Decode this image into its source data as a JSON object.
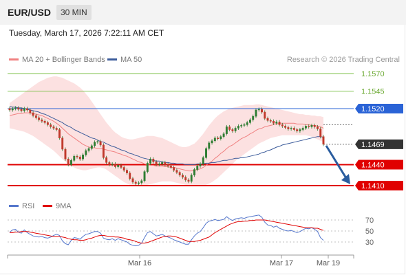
{
  "header": {
    "pair": "EUR/USD",
    "timeframe": "30 MIN"
  },
  "timestamp": "Tuesday, March 17, 2026 7:22:11 AM CET",
  "legend": {
    "ma20": "MA 20 + Bollinger Bands",
    "ma50": "MA 50",
    "rsi": "RSI",
    "ma9": "9MA"
  },
  "copyright": "Research © 2026 Trading Central",
  "colors": {
    "ma20": "#f08080",
    "ma50": "#3a5a9a",
    "bollinger_fill": "#fcdcdc",
    "support": "#e00000",
    "resistance_current": "#2a63d6",
    "target": "#7cc24a",
    "candle": "#2e7d32",
    "rsi": "#5577cc",
    "rsi_ma": "#e00000",
    "arrow": "#2a5d9f",
    "price_label": "#333333"
  },
  "chart_data": [
    {
      "type": "candlestick",
      "title": "EUR/USD",
      "ylim": [
        1.1395,
        1.16
      ],
      "grid": false,
      "legend_placement": "top-left",
      "x_tick_labels": [
        "Mar 16",
        "Mar 17",
        "Mar 19"
      ],
      "levels": [
        {
          "value": 1.157,
          "label": "1.1570",
          "role": "target"
        },
        {
          "value": 1.1545,
          "label": "1.1545",
          "role": "target"
        },
        {
          "value": 1.152,
          "label": "1.1520",
          "role": "resistance"
        },
        {
          "value": 1.1469,
          "label": "1.1469",
          "role": "last"
        },
        {
          "value": 1.144,
          "label": "1.1440",
          "role": "support"
        },
        {
          "value": 1.141,
          "label": "1.1410",
          "role": "support"
        }
      ],
      "close": [
        1.1518,
        1.152,
        1.1521,
        1.1519,
        1.1517,
        1.152,
        1.1518,
        1.1514,
        1.151,
        1.1507,
        1.1504,
        1.1502,
        1.15,
        1.1497,
        1.1494,
        1.1492,
        1.149,
        1.1478,
        1.1462,
        1.1448,
        1.144,
        1.1446,
        1.1452,
        1.1451,
        1.1448,
        1.1454,
        1.146,
        1.1463,
        1.1467,
        1.1472,
        1.1473,
        1.1468,
        1.145,
        1.1443,
        1.144,
        1.1441,
        1.1437,
        1.1439,
        1.1436,
        1.1432,
        1.1428,
        1.142,
        1.1415,
        1.1413,
        1.1414,
        1.1417,
        1.143,
        1.1442,
        1.1448,
        1.1444,
        1.144,
        1.1441,
        1.1443,
        1.144,
        1.1438,
        1.1436,
        1.1432,
        1.1429,
        1.1425,
        1.1422,
        1.1418,
        1.1416,
        1.1425,
        1.1433,
        1.1438,
        1.1441,
        1.145,
        1.1463,
        1.1471,
        1.1474,
        1.1478,
        1.1477,
        1.148,
        1.1484,
        1.1494,
        1.149,
        1.1488,
        1.1492,
        1.1495,
        1.1496,
        1.1497,
        1.15,
        1.1504,
        1.1509,
        1.1518,
        1.1519,
        1.1515,
        1.1506,
        1.1503,
        1.1502,
        1.1499,
        1.1501,
        1.1497,
        1.1495,
        1.1493,
        1.1491,
        1.1492,
        1.149,
        1.1488,
        1.149,
        1.1492,
        1.1495,
        1.1494,
        1.1496,
        1.1494,
        1.1491,
        1.148,
        1.1469
      ],
      "ma20": [
        1.151,
        1.1511,
        1.1512,
        1.1513,
        1.1513,
        1.1514,
        1.1514,
        1.1514,
        1.1513,
        1.1512,
        1.1511,
        1.151,
        1.1508,
        1.1506,
        1.1504,
        1.1502,
        1.1499,
        1.1496,
        1.1492,
        1.1488,
        1.1484,
        1.1481,
        1.1478,
        1.1475,
        1.1472,
        1.1469,
        1.1467,
        1.1465,
        1.1464,
        1.1464,
        1.1463,
        1.1463,
        1.1462,
        1.1461,
        1.146,
        1.1459,
        1.1458,
        1.1456,
        1.1455,
        1.1453,
        1.1452,
        1.145,
        1.1448,
        1.1446,
        1.1444,
        1.1443,
        1.1441,
        1.144,
        1.1439,
        1.1439,
        1.1438,
        1.1438,
        1.1438,
        1.1437,
        1.1437,
        1.1436,
        1.1436,
        1.1435,
        1.1434,
        1.1433,
        1.1432,
        1.1431,
        1.1431,
        1.1432,
        1.1433,
        1.1434,
        1.1436,
        1.1439,
        1.1442,
        1.1445,
        1.1449,
        1.1452,
        1.1456,
        1.1459,
        1.1463,
        1.1466,
        1.1468,
        1.1471,
        1.1474,
        1.1477,
        1.1479,
        1.1481,
        1.1484,
        1.1486,
        1.1489,
        1.1491,
        1.1492,
        1.1494,
        1.1495,
        1.1496,
        1.1497,
        1.1498,
        1.1499,
        1.1499,
        1.1499,
        1.1499,
        1.1499,
        1.1499,
        1.1498,
        1.1498,
        1.1498,
        1.1497,
        1.1497,
        1.1496,
        1.1496,
        1.1495,
        1.1494,
        1.1492
      ],
      "ma50": [
        1.1523,
        1.1522,
        1.1522,
        1.1521,
        1.1521,
        1.152,
        1.1519,
        1.1518,
        1.1517,
        1.1516,
        1.1515,
        1.1513,
        1.1512,
        1.151,
        1.1508,
        1.1506,
        1.1504,
        1.1502,
        1.15,
        1.1497,
        1.1495,
        1.1493,
        1.149,
        1.1488,
        1.1486,
        1.1484,
        1.1482,
        1.148,
        1.1478,
        1.1477,
        1.1475,
        1.1473,
        1.1472,
        1.147,
        1.1468,
        1.1466,
        1.1465,
        1.1463,
        1.1461,
        1.146,
        1.1458,
        1.1456,
        1.1455,
        1.1453,
        1.1452,
        1.145,
        1.1449,
        1.1448,
        1.1447,
        1.1446,
        1.1445,
        1.1445,
        1.1444,
        1.1443,
        1.1443,
        1.1442,
        1.1442,
        1.1441,
        1.1441,
        1.1441,
        1.144,
        1.144,
        1.144,
        1.144,
        1.1441,
        1.1441,
        1.1441,
        1.1442,
        1.1442,
        1.1443,
        1.1443,
        1.1444,
        1.1445,
        1.1446,
        1.1446,
        1.1447,
        1.1448,
        1.1449,
        1.1449,
        1.145,
        1.145,
        1.1451,
        1.1452,
        1.1453,
        1.1454,
        1.1455,
        1.1457,
        1.1458,
        1.146,
        1.1461,
        1.1463,
        1.1465,
        1.1466,
        1.1468,
        1.1469,
        1.147,
        1.1471,
        1.1472,
        1.1473,
        1.1474,
        1.1475,
        1.1476,
        1.1477,
        1.1478,
        1.1479,
        1.148,
        1.148,
        1.1479
      ],
      "bb_upper": [
        1.1528,
        1.1531,
        1.1534,
        1.1537,
        1.154,
        1.1543,
        1.1546,
        1.1549,
        1.1552,
        1.1555,
        1.1558,
        1.156,
        1.1562,
        1.1564,
        1.1565,
        1.1566,
        1.1566,
        1.1565,
        1.1564,
        1.1562,
        1.156,
        1.1558,
        1.1556,
        1.1553,
        1.155,
        1.1546,
        1.1541,
        1.1536,
        1.153,
        1.1524,
        1.1518,
        1.1512,
        1.1506,
        1.15,
        1.1495,
        1.149,
        1.1486,
        1.1483,
        1.148,
        1.1478,
        1.1477,
        1.1476,
        1.1476,
        1.1477,
        1.1478,
        1.1479,
        1.148,
        1.1481,
        1.1481,
        1.1481,
        1.148,
        1.1479,
        1.1478,
        1.1476,
        1.1474,
        1.1472,
        1.147,
        1.1468,
        1.1466,
        1.1465,
        1.1465,
        1.1466,
        1.1468,
        1.147,
        1.1474,
        1.1479,
        1.1484,
        1.149,
        1.1496,
        1.1501,
        1.1506,
        1.151,
        1.1513,
        1.1516,
        1.1518,
        1.152,
        1.1521,
        1.1522,
        1.1523,
        1.1524,
        1.1525,
        1.1525,
        1.1525,
        1.1525,
        1.1526,
        1.1526,
        1.1525,
        1.1524,
        1.1523,
        1.1522,
        1.1521,
        1.152,
        1.1519,
        1.1518,
        1.1517,
        1.1516,
        1.1515,
        1.1514,
        1.1513,
        1.1512,
        1.1512,
        1.1511,
        1.1511,
        1.151,
        1.151,
        1.1509,
        1.1509,
        1.1508
      ],
      "bb_lower": [
        1.1492,
        1.1491,
        1.149,
        1.1489,
        1.1488,
        1.1487,
        1.1485,
        1.1483,
        1.1481,
        1.1478,
        1.1475,
        1.1472,
        1.1469,
        1.1466,
        1.1463,
        1.146,
        1.1456,
        1.1452,
        1.1448,
        1.1444,
        1.1441,
        1.1438,
        1.1436,
        1.1434,
        1.1433,
        1.1432,
        1.1432,
        1.1433,
        1.1434,
        1.1435,
        1.1436,
        1.1436,
        1.1435,
        1.1433,
        1.143,
        1.1427,
        1.1424,
        1.1421,
        1.1418,
        1.1415,
        1.1413,
        1.1411,
        1.141,
        1.1409,
        1.1409,
        1.1409,
        1.141,
        1.1411,
        1.1412,
        1.1413,
        1.1414,
        1.1415,
        1.1416,
        1.1416,
        1.1416,
        1.1416,
        1.1415,
        1.1414,
        1.1413,
        1.1412,
        1.1411,
        1.141,
        1.141,
        1.141,
        1.141,
        1.141,
        1.141,
        1.1411,
        1.1413,
        1.1415,
        1.1418,
        1.1421,
        1.1425,
        1.1429,
        1.1433,
        1.1437,
        1.1441,
        1.1445,
        1.1449,
        1.1452,
        1.1455,
        1.1458,
        1.1461,
        1.1464,
        1.1467,
        1.147,
        1.1472,
        1.1474,
        1.1476,
        1.1478,
        1.1479,
        1.148,
        1.1481,
        1.1482,
        1.1482,
        1.1482,
        1.1482,
        1.1482,
        1.1482,
        1.1482,
        1.1482,
        1.1482,
        1.1481,
        1.148,
        1.1478,
        1.1476,
        1.1474,
        1.1472
      ]
    },
    {
      "type": "line",
      "title": "RSI",
      "ylim": [
        20,
        80
      ],
      "y_ticks": [
        70,
        50,
        30
      ],
      "series": [
        {
          "name": "RSI",
          "values": [
            48,
            52,
            53,
            48,
            46,
            52,
            47,
            44,
            41,
            40,
            39,
            40,
            38,
            37,
            39,
            42,
            44,
            42,
            32,
            27,
            25,
            33,
            38,
            37,
            35,
            40,
            44,
            45,
            47,
            49,
            49,
            46,
            37,
            35,
            34,
            36,
            33,
            36,
            34,
            32,
            30,
            26,
            24,
            23,
            24,
            28,
            38,
            47,
            49,
            45,
            41,
            42,
            44,
            41,
            39,
            37,
            34,
            32,
            30,
            28,
            26,
            26,
            34,
            41,
            46,
            49,
            56,
            64,
            68,
            69,
            71,
            69,
            70,
            71,
            76,
            72,
            69,
            72,
            73,
            74,
            73,
            75,
            76,
            77,
            78,
            79,
            75,
            66,
            61,
            60,
            57,
            59,
            55,
            53,
            51,
            50,
            51,
            49,
            47,
            49,
            52,
            55,
            54,
            56,
            53,
            49,
            38,
            33
          ]
        },
        {
          "name": "9MA",
          "values": [
            47,
            47,
            48,
            48,
            49,
            49,
            49,
            48,
            47,
            46,
            45,
            44,
            43,
            42,
            41,
            40,
            40,
            40,
            39,
            38,
            36,
            35,
            34,
            34,
            33,
            33,
            34,
            36,
            37,
            39,
            41,
            42,
            42,
            41,
            40,
            40,
            39,
            39,
            38,
            37,
            35,
            34,
            33,
            31,
            29,
            28,
            28,
            29,
            31,
            33,
            35,
            37,
            39,
            40,
            41,
            41,
            40,
            39,
            37,
            35,
            33,
            31,
            31,
            31,
            32,
            33,
            35,
            37,
            39,
            43,
            47,
            50,
            53,
            56,
            59,
            62,
            64,
            66,
            67,
            67,
            68,
            68,
            69,
            69,
            70,
            70,
            70,
            70,
            69,
            68,
            67,
            66,
            65,
            64,
            63,
            62,
            61,
            60,
            59,
            58,
            57,
            56,
            56,
            56,
            55,
            55,
            53,
            51
          ]
        }
      ]
    }
  ]
}
